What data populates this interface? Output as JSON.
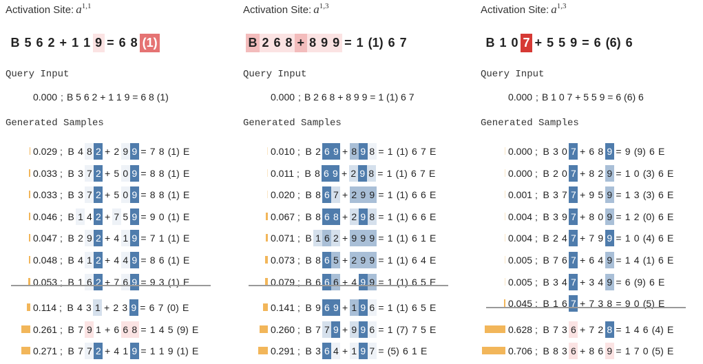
{
  "delimiter": ";",
  "palette": {
    "D": "#4f7cac",
    "M": "#a9bfd7",
    "L": "#d5e0ec",
    "F": "#eef2f7",
    "r": "#fbe3e3",
    "R": "#f3bcbc",
    "X": "#e57373",
    "Z": "#d63a35"
  },
  "bar_color": "#f2b65a",
  "panels": [
    {
      "title": "Activation Site:",
      "site": "a",
      "sup": "1,1",
      "header": {
        "tokens": [
          "B",
          "5",
          "6",
          "2",
          "+",
          "1",
          "1",
          "9",
          "=",
          "6",
          "8",
          "(1)"
        ],
        "hl": {
          "7": "r",
          "11": "X"
        }
      },
      "query_label": "Query Input",
      "query": {
        "score": {
          "value": 0,
          "label": "0.000"
        },
        "text": "B 5 6 2 + 1 1 9 = 6 8 (1)"
      },
      "samples_label": "Generated Samples",
      "separator_after": 7,
      "samples": [
        {
          "score": 0.029,
          "tokens": [
            "B",
            "4",
            "8",
            "2",
            "+",
            "2",
            "9",
            "9",
            "=",
            "7",
            "8",
            "(1)",
            "E"
          ],
          "hl": {
            "2": "F",
            "3": "D",
            "6": "F",
            "7": "D"
          }
        },
        {
          "score": 0.033,
          "tokens": [
            "B",
            "3",
            "7",
            "2",
            "+",
            "5",
            "0",
            "9",
            "=",
            "8",
            "8",
            "(1)",
            "E"
          ],
          "hl": {
            "2": "F",
            "3": "D",
            "6": "F",
            "7": "D"
          }
        },
        {
          "score": 0.033,
          "tokens": [
            "B",
            "3",
            "7",
            "2",
            "+",
            "5",
            "0",
            "9",
            "=",
            "8",
            "8",
            "(1)",
            "E"
          ],
          "hl": {
            "2": "F",
            "3": "D",
            "6": "F",
            "7": "D"
          }
        },
        {
          "score": 0.046,
          "tokens": [
            "B",
            "1",
            "4",
            "2",
            "+",
            "7",
            "5",
            "9",
            "=",
            "9",
            "0",
            "(1)",
            "E"
          ],
          "hl": {
            "1": "F",
            "3": "D",
            "5": "F",
            "7": "D"
          }
        },
        {
          "score": 0.047,
          "tokens": [
            "B",
            "2",
            "9",
            "2",
            "+",
            "4",
            "1",
            "9",
            "=",
            "7",
            "1",
            "(1)",
            "E"
          ],
          "hl": {
            "2": "F",
            "3": "D",
            "6": "F",
            "7": "D"
          }
        },
        {
          "score": 0.048,
          "tokens": [
            "B",
            "4",
            "1",
            "2",
            "+",
            "4",
            "4",
            "9",
            "=",
            "8",
            "6",
            "(1)",
            "E"
          ],
          "hl": {
            "2": "F",
            "3": "D",
            "6": "F",
            "7": "D"
          }
        },
        {
          "score": 0.053,
          "tokens": [
            "B",
            "1",
            "6",
            "2",
            "+",
            "7",
            "6",
            "9",
            "=",
            "9",
            "3",
            "(1)",
            "E"
          ],
          "hl": {
            "2": "F",
            "3": "D",
            "6": "F",
            "7": "D"
          }
        },
        {
          "score": 0.114,
          "tokens": [
            "B",
            "4",
            "3",
            "1",
            "+",
            "2",
            "3",
            "9",
            "=",
            "6",
            "7",
            "(0)",
            "E"
          ],
          "hl": {
            "3": "L",
            "7": "D"
          }
        },
        {
          "score": 0.261,
          "tokens": [
            "B",
            "7",
            "9",
            "1",
            "+",
            "6",
            "6",
            "8",
            "=",
            "1",
            "4",
            "5",
            "(9)",
            "E"
          ],
          "hl": {
            "2": "r",
            "6": "r",
            "7": "r"
          }
        },
        {
          "score": 0.271,
          "tokens": [
            "B",
            "7",
            "7",
            "2",
            "+",
            "4",
            "1",
            "9",
            "=",
            "1",
            "1",
            "9",
            "(1)",
            "E"
          ],
          "hl": {
            "2": "F",
            "3": "D",
            "7": "D"
          }
        }
      ]
    },
    {
      "title": "Activation Site:",
      "site": "a",
      "sup": "1,3",
      "header": {
        "tokens": [
          "B",
          "2",
          "6",
          "8",
          "+",
          "8",
          "9",
          "9",
          "=",
          "1",
          "(1)",
          "6",
          "7"
        ],
        "hl": {
          "0": "R",
          "1": "r",
          "2": "r",
          "3": "r",
          "4": "R",
          "5": "r",
          "6": "r",
          "7": "r"
        }
      },
      "query_label": "Query Input",
      "query": {
        "score": {
          "value": 0,
          "label": "0.000"
        },
        "text": "B 2 6 8 + 8 9 9 = 1 (1) 6 7"
      },
      "samples_label": "Generated Samples",
      "separator_after": 7,
      "samples": [
        {
          "score": {
            "value": 0.01,
            "label": "0.010"
          },
          "tokens": [
            "B",
            "2",
            "6",
            "9",
            "+",
            "8",
            "9",
            "8",
            "=",
            "1",
            "(1)",
            "6",
            "7",
            "E"
          ],
          "hl": {
            "2": "D",
            "3": "D",
            "5": "M",
            "6": "D",
            "7": "F"
          }
        },
        {
          "score": 0.011,
          "tokens": [
            "B",
            "8",
            "6",
            "9",
            "+",
            "2",
            "9",
            "8",
            "=",
            "1",
            "(1)",
            "6",
            "7",
            "E"
          ],
          "hl": {
            "2": "D",
            "3": "D",
            "5": "L",
            "6": "D",
            "7": "L"
          }
        },
        {
          "score": {
            "value": 0.02,
            "label": "0.020"
          },
          "tokens": [
            "B",
            "8",
            "6",
            "7",
            "+",
            "2",
            "9",
            "9",
            "=",
            "1",
            "(1)",
            "6",
            "6",
            "E"
          ],
          "hl": {
            "2": "D",
            "3": "L",
            "5": "M",
            "6": "M",
            "7": "M"
          }
        },
        {
          "score": 0.067,
          "tokens": [
            "B",
            "8",
            "6",
            "8",
            "+",
            "2",
            "9",
            "8",
            "=",
            "1",
            "(1)",
            "6",
            "6",
            "E"
          ],
          "hl": {
            "2": "D",
            "3": "D",
            "5": "L",
            "6": "D",
            "7": "L"
          }
        },
        {
          "score": 0.071,
          "tokens": [
            "B",
            "1",
            "6",
            "2",
            "+",
            "9",
            "9",
            "9",
            "=",
            "1",
            "(1)",
            "6",
            "1",
            "E"
          ],
          "hl": {
            "1": "L",
            "2": "M",
            "3": "L",
            "5": "M",
            "6": "M",
            "7": "M"
          }
        },
        {
          "score": 0.073,
          "tokens": [
            "B",
            "8",
            "6",
            "5",
            "+",
            "2",
            "9",
            "9",
            "=",
            "1",
            "(1)",
            "6",
            "4",
            "E"
          ],
          "hl": {
            "2": "D",
            "3": "M",
            "5": "M",
            "6": "M",
            "7": "M"
          }
        },
        {
          "score": 0.079,
          "tokens": [
            "B",
            "6",
            "6",
            "6",
            "+",
            "4",
            "9",
            "9",
            "=",
            "1",
            "(1)",
            "6",
            "5",
            "E"
          ],
          "hl": {
            "2": "D",
            "3": "M",
            "6": "D",
            "7": "M"
          }
        },
        {
          "score": 0.141,
          "tokens": [
            "B",
            "9",
            "6",
            "9",
            "+",
            "1",
            "9",
            "6",
            "=",
            "1",
            "(1)",
            "6",
            "5",
            "E"
          ],
          "hl": {
            "2": "D",
            "3": "D",
            "5": "M",
            "6": "D",
            "7": "F"
          }
        },
        {
          "score": {
            "value": 0.26,
            "label": "0.260"
          },
          "tokens": [
            "B",
            "7",
            "7",
            "9",
            "+",
            "9",
            "9",
            "6",
            "=",
            "1",
            "(7)",
            "7",
            "5",
            "E"
          ],
          "hl": {
            "2": "L",
            "3": "D",
            "5": "L",
            "6": "D",
            "7": "F"
          }
        },
        {
          "score": 0.291,
          "tokens": [
            "B",
            "3",
            "6",
            "4",
            "+",
            "1",
            "9",
            "7",
            "=",
            "(5)",
            "6",
            "1",
            "E"
          ],
          "hl": {
            "2": "D",
            "3": "F",
            "5": "F",
            "6": "D",
            "7": "F"
          }
        }
      ]
    },
    {
      "title": "Activation Site:",
      "site": "a",
      "sup": "1,3",
      "header": {
        "tokens": [
          "B",
          "1",
          "0",
          "7",
          "+",
          "5",
          "5",
          "9",
          "=",
          "6",
          "(6)",
          "6"
        ],
        "hl": {
          "3": "Z"
        }
      },
      "query_label": "Query Input",
      "query": {
        "score": {
          "value": 0,
          "label": "0.000"
        },
        "text": "B 1 0 7 + 5 5 9 = 6 (6) 6"
      },
      "samples_label": "Generated Samples",
      "separator_after": 8,
      "samples": [
        {
          "score": {
            "value": 0,
            "label": "0.000"
          },
          "tokens": [
            "B",
            "3",
            "0",
            "7",
            "+",
            "6",
            "8",
            "9",
            "=",
            "9",
            "(9)",
            "6",
            "E"
          ],
          "hl": {
            "3": "D",
            "7": "D"
          }
        },
        {
          "score": {
            "value": 0,
            "label": "0.000"
          },
          "tokens": [
            "B",
            "2",
            "0",
            "7",
            "+",
            "8",
            "2",
            "9",
            "=",
            "1",
            "0",
            "(3)",
            "6",
            "E"
          ],
          "hl": {
            "3": "D",
            "7": "M"
          }
        },
        {
          "score": 0.001,
          "tokens": [
            "B",
            "3",
            "7",
            "7",
            "+",
            "9",
            "5",
            "9",
            "=",
            "1",
            "3",
            "(3)",
            "6",
            "E"
          ],
          "hl": {
            "3": "D",
            "7": "M"
          }
        },
        {
          "score": 0.004,
          "tokens": [
            "B",
            "3",
            "9",
            "7",
            "+",
            "8",
            "0",
            "9",
            "=",
            "1",
            "2",
            "(0)",
            "6",
            "E"
          ],
          "hl": {
            "3": "D",
            "7": "M"
          }
        },
        {
          "score": 0.004,
          "tokens": [
            "B",
            "2",
            "4",
            "7",
            "+",
            "7",
            "9",
            "9",
            "=",
            "1",
            "0",
            "(4)",
            "6",
            "E"
          ],
          "hl": {
            "3": "D",
            "7": "D"
          }
        },
        {
          "score": 0.005,
          "tokens": [
            "B",
            "7",
            "6",
            "7",
            "+",
            "6",
            "4",
            "9",
            "=",
            "1",
            "4",
            "(1)",
            "6",
            "E"
          ],
          "hl": {
            "3": "D",
            "7": "M"
          }
        },
        {
          "score": 0.005,
          "tokens": [
            "B",
            "3",
            "4",
            "7",
            "+",
            "3",
            "4",
            "9",
            "=",
            "6",
            "(9)",
            "6",
            "E"
          ],
          "hl": {
            "3": "D",
            "7": "M"
          }
        },
        {
          "score": 0.045,
          "tokens": [
            "B",
            "1",
            "6",
            "7",
            "+",
            "7",
            "3",
            "8",
            "=",
            "9",
            "0",
            "(5)",
            "E"
          ],
          "hl": {
            "3": "D"
          }
        },
        {
          "score": 0.628,
          "tokens": [
            "B",
            "7",
            "3",
            "6",
            "+",
            "7",
            "2",
            "8",
            "=",
            "1",
            "4",
            "6",
            "(4)",
            "E"
          ],
          "hl": {
            "3": "r",
            "7": "D"
          }
        },
        {
          "score": 0.706,
          "tokens": [
            "B",
            "8",
            "3",
            "6",
            "+",
            "8",
            "6",
            "9",
            "=",
            "1",
            "7",
            "0",
            "(5)",
            "E"
          ],
          "hl": {
            "3": "r",
            "7": "r"
          }
        }
      ]
    }
  ]
}
